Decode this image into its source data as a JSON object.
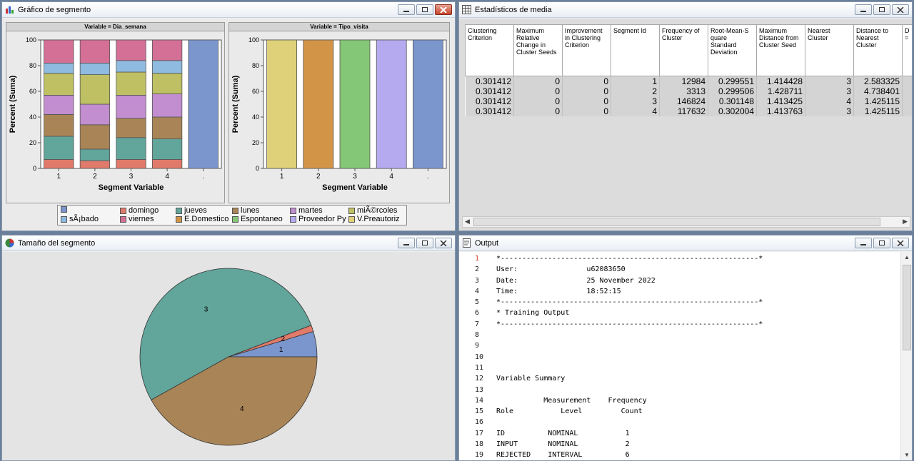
{
  "windows": {
    "bar_chart": {
      "title": "Gráfico de segmento"
    },
    "stats": {
      "title": "Estadísticos de media"
    },
    "pie": {
      "title": "Tamaño del segmento"
    },
    "output": {
      "title": "Output"
    }
  },
  "chart_data": [
    {
      "type": "bar",
      "stacked": true,
      "panel_title": "Variable = Dia_semana",
      "xlabel": "Segment Variable",
      "ylabel": "Percent (Suma)",
      "ylim": [
        0,
        100
      ],
      "yticks": [
        "0",
        "20",
        "40",
        "60",
        "80",
        "100"
      ],
      "categories": [
        "1",
        "2",
        "3",
        "4",
        "."
      ],
      "series": [
        {
          "name": "domingo",
          "color": "#e07a6a",
          "values": [
            7,
            6,
            7,
            7,
            0
          ]
        },
        {
          "name": "jueves",
          "color": "#62a59b",
          "values": [
            18,
            9,
            17,
            16,
            0
          ]
        },
        {
          "name": "lunes",
          "color": "#a98456",
          "values": [
            17,
            19,
            15,
            17,
            0
          ]
        },
        {
          "name": "martes",
          "color": "#c28ed0",
          "values": [
            15,
            16,
            18,
            18,
            0
          ]
        },
        {
          "name": "miÃ©rcoles",
          "color": "#bfc063",
          "values": [
            17,
            23,
            18,
            16,
            0
          ]
        },
        {
          "name": "sÃ¡bado",
          "color": "#8fbbe0",
          "values": [
            8,
            9,
            9,
            10,
            0
          ]
        },
        {
          "name": "viernes",
          "color": "#d47096",
          "values": [
            18,
            18,
            16,
            16,
            0
          ]
        },
        {
          "name": "",
          "color": "#7b96cd",
          "values": [
            0,
            0,
            0,
            0,
            100
          ]
        }
      ]
    },
    {
      "type": "bar",
      "panel_title": "Variable = Tipo_visita",
      "xlabel": "Segment Variable",
      "ylabel": "Percent (Suma)",
      "ylim": [
        0,
        100
      ],
      "yticks": [
        "0",
        "20",
        "40",
        "60",
        "80",
        "100"
      ],
      "categories": [
        "1",
        "2",
        "3",
        "4",
        "."
      ],
      "values": [
        100,
        100,
        100,
        100,
        100
      ],
      "colors": [
        "#ded179",
        "#d29548",
        "#84c776",
        "#b5aaf0",
        "#7b96cd"
      ],
      "series_names": [
        "V.Preautoriz",
        "E.Domestico",
        "Espontaneo",
        "Proveedor Py",
        ""
      ]
    },
    {
      "type": "pie",
      "labels": [
        "1",
        "2",
        "3",
        "4"
      ],
      "values": [
        12984,
        3313,
        146824,
        117632
      ],
      "colors": [
        "#7b96cd",
        "#e07a6a",
        "#62a59b",
        "#a98456"
      ]
    }
  ],
  "legend": [
    {
      "label": "",
      "color": "#7b96cd"
    },
    {
      "label": "domingo",
      "color": "#e07a6a"
    },
    {
      "label": "jueves",
      "color": "#62a59b"
    },
    {
      "label": "lunes",
      "color": "#a98456"
    },
    {
      "label": "martes",
      "color": "#c28ed0"
    },
    {
      "label": "miÃ©rcoles",
      "color": "#bfc063"
    },
    {
      "label": "sÃ¡bado",
      "color": "#8fbbe0"
    },
    {
      "label": "viernes",
      "color": "#d47096"
    },
    {
      "label": "E.Domestico",
      "color": "#d29548"
    },
    {
      "label": "Espontaneo",
      "color": "#84c776"
    },
    {
      "label": "Proveedor Py",
      "color": "#b5aaf0"
    },
    {
      "label": "V.Preautoriz",
      "color": "#ded179"
    }
  ],
  "stats_table": {
    "headers": [
      "Clustering Criterion",
      "Maximum Relative Change in Cluster Seeds",
      "Improvement in Clustering Criterion",
      "Segment Id",
      "Frequency of Cluster",
      "Root-Mean-S quare Standard Deviation",
      "Maximum Distance from Cluster Seed",
      "Nearest Cluster",
      "Distance to Nearest Cluster",
      "D ="
    ],
    "rows": [
      [
        "0.301412",
        "0",
        "0",
        "1",
        "12984",
        "0.299551",
        "1.414428",
        "3",
        "2.583325",
        ""
      ],
      [
        "0.301412",
        "0",
        "0",
        "2",
        "3313",
        "0.299506",
        "1.428711",
        "3",
        "4.738401",
        ""
      ],
      [
        "0.301412",
        "0",
        "0",
        "3",
        "146824",
        "0.301148",
        "1.413425",
        "4",
        "1.425115",
        ""
      ],
      [
        "0.301412",
        "0",
        "0",
        "4",
        "117632",
        "0.302004",
        "1.413763",
        "3",
        "1.425115",
        ""
      ]
    ]
  },
  "output_lines": [
    {
      "n": "1",
      "t": "*------------------------------------------------------------*"
    },
    {
      "n": "2",
      "t": "User:                u62083650"
    },
    {
      "n": "3",
      "t": "Date:                25 November 2022"
    },
    {
      "n": "4",
      "t": "Time:                18:52:15"
    },
    {
      "n": "5",
      "t": "*------------------------------------------------------------*"
    },
    {
      "n": "6",
      "t": "* Training Output"
    },
    {
      "n": "7",
      "t": "*------------------------------------------------------------*"
    },
    {
      "n": "8",
      "t": ""
    },
    {
      "n": "9",
      "t": ""
    },
    {
      "n": "10",
      "t": ""
    },
    {
      "n": "11",
      "t": ""
    },
    {
      "n": "12",
      "t": "Variable Summary"
    },
    {
      "n": "13",
      "t": ""
    },
    {
      "n": "14",
      "t": "           Measurement    Frequency"
    },
    {
      "n": "15",
      "t": "Role           Level         Count"
    },
    {
      "n": "16",
      "t": ""
    },
    {
      "n": "17",
      "t": "ID          NOMINAL           1"
    },
    {
      "n": "18",
      "t": "INPUT       NOMINAL           2"
    },
    {
      "n": "19",
      "t": "REJECTED    INTERVAL          6"
    }
  ]
}
